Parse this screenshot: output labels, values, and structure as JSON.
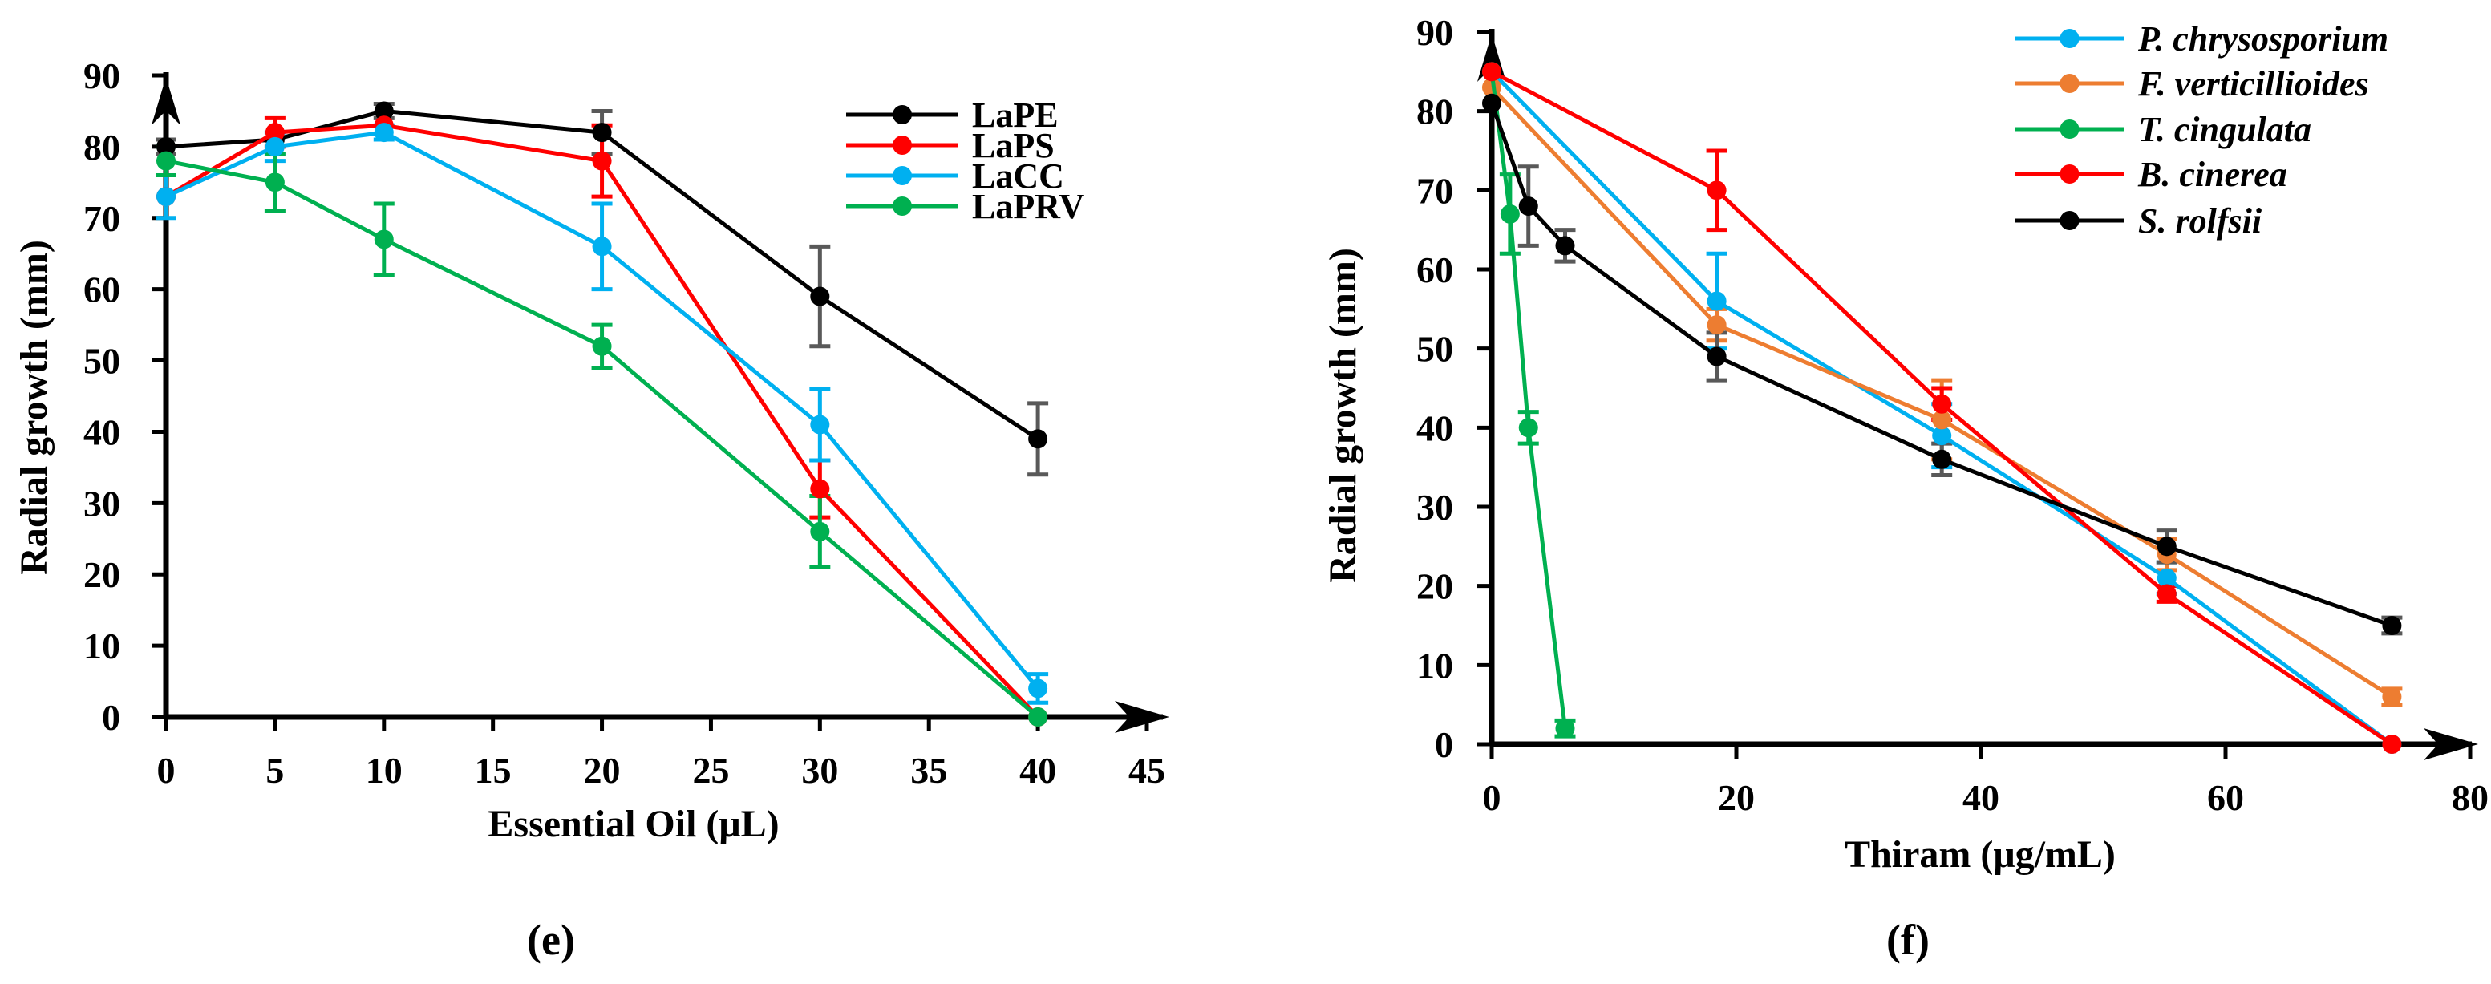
{
  "chart_data": [
    {
      "type": "line",
      "panel_label": "(e)",
      "xlabel": "Essential Oil (μL)",
      "ylabel": "Radial growth (mm)",
      "xlim": [
        0,
        45
      ],
      "ylim": [
        0,
        90
      ],
      "xticks": [
        0,
        5,
        10,
        15,
        20,
        25,
        30,
        35,
        40,
        45
      ],
      "yticks": [
        0,
        10,
        20,
        30,
        40,
        50,
        60,
        70,
        80,
        90
      ],
      "legend_position": "top-right",
      "legend_italic": false,
      "grid": false,
      "series": [
        {
          "name": "LaPE",
          "color": "#000000",
          "err_color": "#595959",
          "x": [
            0,
            5,
            10,
            20,
            30,
            40
          ],
          "y": [
            80,
            81,
            85,
            82,
            59,
            39
          ],
          "err": [
            1,
            0,
            1,
            3,
            7,
            5
          ]
        },
        {
          "name": "LaPS",
          "color": "#ff0000",
          "err_color": "#ff0000",
          "x": [
            0,
            5,
            10,
            20,
            30,
            40
          ],
          "y": [
            73,
            82,
            83,
            78,
            32,
            0
          ],
          "err": [
            0,
            2,
            0,
            5,
            4,
            0
          ]
        },
        {
          "name": "LaCC",
          "color": "#00b0f0",
          "err_color": "#00b0f0",
          "x": [
            0,
            5,
            10,
            20,
            30,
            40
          ],
          "y": [
            73,
            80,
            82,
            66,
            41,
            4
          ],
          "err": [
            3,
            2,
            1,
            6,
            5,
            2
          ]
        },
        {
          "name": "LaPRV",
          "color": "#00b050",
          "err_color": "#00b050",
          "x": [
            0,
            5,
            10,
            20,
            30,
            40
          ],
          "y": [
            78,
            75,
            67,
            52,
            26,
            0
          ],
          "err": [
            2,
            4,
            5,
            3,
            5,
            0
          ]
        }
      ]
    },
    {
      "type": "line",
      "panel_label": "(f)",
      "xlabel": "Thiram (μg/mL)",
      "ylabel": "Radial growth (mm)",
      "xlim": [
        0,
        80
      ],
      "ylim": [
        0,
        90
      ],
      "xticks": [
        0,
        20,
        40,
        60,
        80
      ],
      "yticks": [
        0,
        10,
        20,
        30,
        40,
        50,
        60,
        70,
        80,
        90
      ],
      "legend_position": "top-right",
      "legend_italic": true,
      "grid": false,
      "series": [
        {
          "name": "P. chrysosporium",
          "color": "#00b0f0",
          "err_color": "#00b0f0",
          "x": [
            0,
            18.4,
            36.8,
            55.2,
            73.6
          ],
          "y": [
            85,
            56,
            39,
            21,
            0
          ],
          "err": [
            0,
            6,
            4,
            2,
            0
          ]
        },
        {
          "name": "F. verticillioides",
          "color": "#ed7d31",
          "err_color": "#ed7d31",
          "x": [
            0,
            18.4,
            36.8,
            55.2,
            73.6
          ],
          "y": [
            83,
            53,
            41,
            24,
            6
          ],
          "err": [
            0,
            2,
            5,
            2,
            1
          ]
        },
        {
          "name": "T. cingulata",
          "color": "#00b050",
          "err_color": "#00b050",
          "x": [
            0,
            1.5,
            3,
            6
          ],
          "y": [
            85,
            67,
            40,
            2
          ],
          "err": [
            0,
            5,
            2,
            1
          ]
        },
        {
          "name": "B. cinerea",
          "color": "#ff0000",
          "err_color": "#ff0000",
          "x": [
            0,
            18.4,
            36.8,
            55.2,
            73.6
          ],
          "y": [
            85,
            70,
            43,
            19,
            0
          ],
          "err": [
            0,
            5,
            2,
            1,
            0
          ]
        },
        {
          "name": "S. rolfsii",
          "color": "#000000",
          "err_color": "#595959",
          "x": [
            0,
            3,
            6,
            18.4,
            36.8,
            55.2,
            73.6
          ],
          "y": [
            81,
            68,
            63,
            49,
            36,
            25,
            15
          ],
          "err": [
            0,
            5,
            2,
            3,
            2,
            2,
            1
          ]
        }
      ]
    }
  ]
}
